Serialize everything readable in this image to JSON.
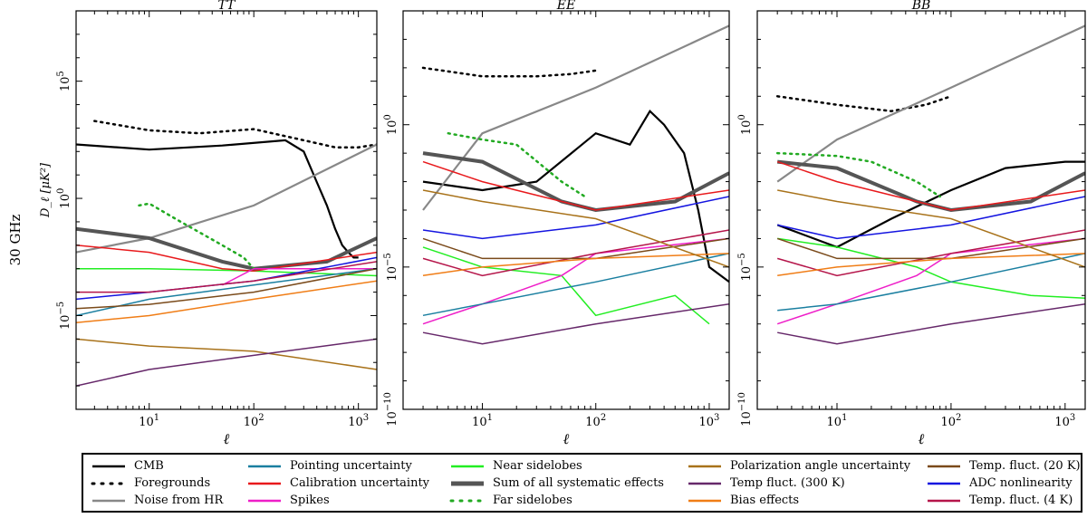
{
  "figure": {
    "row_label": "30 GHz"
  },
  "chart_data": [
    {
      "type": "line",
      "title": "TT",
      "xlabel": "ℓ",
      "ylabel": "D_ℓ [μK²]",
      "xscale": "log",
      "yscale": "log",
      "xlim": [
        2,
        1500
      ],
      "ylim": [
        1e-09,
        100000000.0
      ],
      "x_tick_labels": [
        "10^1",
        "10^2",
        "10^3"
      ],
      "y_tick_labels": [
        "10^−5",
        "10^0",
        "10^5"
      ],
      "series": [
        {
          "key": "cmb",
          "x": [
            2,
            10,
            50,
            200,
            300,
            400,
            500,
            600,
            700,
            800,
            900,
            1000
          ],
          "y": [
            200,
            120,
            180,
            300,
            100,
            5,
            0.5,
            0.05,
            0.01,
            0.005,
            0.003,
            0.003
          ]
        },
        {
          "key": "fg",
          "x": [
            3,
            10,
            30,
            100,
            300,
            600,
            1000,
            1500
          ],
          "y": [
            2000,
            800,
            600,
            900,
            300,
            150,
            150,
            200
          ]
        },
        {
          "key": "noise",
          "x": [
            2,
            10,
            100,
            1500
          ],
          "y": [
            0.005,
            0.02,
            0.5,
            200
          ]
        },
        {
          "key": "sum",
          "x": [
            2,
            10,
            50,
            100,
            500,
            1500
          ],
          "y": [
            0.05,
            0.02,
            0.002,
            0.001,
            0.002,
            0.02
          ]
        },
        {
          "key": "farsl",
          "x": [
            8,
            10,
            20,
            50,
            80,
            100
          ],
          "y": [
            0.5,
            0.6,
            0.1,
            0.01,
            0.003,
            0.001
          ]
        },
        {
          "key": "nearsl",
          "x": [
            2,
            10,
            100,
            1500
          ],
          "y": [
            0.001,
            0.001,
            0.0008,
            0.0005
          ]
        },
        {
          "key": "calib",
          "x": [
            2,
            10,
            50,
            100,
            1500
          ],
          "y": [
            0.01,
            0.005,
            0.001,
            0.0008,
            0.005
          ]
        },
        {
          "key": "spikes",
          "x": [
            50,
            100,
            1500
          ],
          "y": [
            0.0002,
            0.001,
            0.001
          ]
        },
        {
          "key": "pointing",
          "x": [
            2,
            10,
            100,
            1500
          ],
          "y": [
            1e-05,
            5e-05,
            0.0002,
            0.001
          ]
        },
        {
          "key": "adc",
          "x": [
            2,
            10,
            100,
            1500
          ],
          "y": [
            5e-05,
            0.0001,
            0.0003,
            0.003
          ]
        },
        {
          "key": "tfluct4",
          "x": [
            2,
            10,
            100,
            1500
          ],
          "y": [
            0.0001,
            0.0001,
            0.0003,
            0.002
          ]
        },
        {
          "key": "tfluct20",
          "x": [
            2,
            10,
            100,
            1500
          ],
          "y": [
            2e-05,
            3e-05,
            0.0001,
            0.001
          ]
        },
        {
          "key": "bias",
          "x": [
            2,
            10,
            100,
            1500
          ],
          "y": [
            5e-06,
            1e-05,
            5e-05,
            0.0003
          ]
        },
        {
          "key": "polang",
          "x": [
            2,
            10,
            100,
            1500
          ],
          "y": [
            1e-06,
            5e-07,
            3e-07,
            5e-08
          ]
        },
        {
          "key": "tfluct300",
          "x": [
            2,
            10,
            100,
            1500
          ],
          "y": [
            1e-08,
            5e-08,
            2e-07,
            1e-06
          ]
        }
      ]
    },
    {
      "type": "line",
      "title": "EE",
      "xlabel": "ℓ",
      "ylabel": "",
      "xscale": "log",
      "yscale": "log",
      "xlim": [
        2,
        1500
      ],
      "ylim": [
        1e-10,
        10000.0
      ],
      "x_tick_labels": [
        "10^1",
        "10^2",
        "10^3"
      ],
      "y_tick_labels": [
        "10^−10",
        "10^−5",
        "10^0"
      ],
      "series": [
        {
          "key": "cmb",
          "x": [
            3,
            10,
            30,
            100,
            200,
            300,
            400,
            600,
            800,
            1000,
            1500
          ],
          "y": [
            0.01,
            0.005,
            0.01,
            0.5,
            0.2,
            3,
            1,
            0.1,
            0.001,
            1e-05,
            3e-06
          ]
        },
        {
          "key": "fg",
          "x": [
            3,
            10,
            30,
            60,
            100
          ],
          "y": [
            100,
            50,
            50,
            60,
            80
          ]
        },
        {
          "key": "noise",
          "x": [
            3,
            10,
            100,
            1500
          ],
          "y": [
            0.001,
            0.5,
            20,
            3000
          ]
        },
        {
          "key": "sum",
          "x": [
            3,
            10,
            50,
            100,
            500,
            1500
          ],
          "y": [
            0.1,
            0.05,
            0.002,
            0.001,
            0.002,
            0.02
          ]
        },
        {
          "key": "farsl",
          "x": [
            5,
            10,
            20,
            50,
            80
          ],
          "y": [
            0.5,
            0.3,
            0.2,
            0.01,
            0.003
          ]
        },
        {
          "key": "nearsl",
          "x": [
            3,
            10,
            50,
            100,
            500,
            1000
          ],
          "y": [
            5e-05,
            1e-05,
            5e-06,
            2e-07,
            1e-06,
            1e-07
          ]
        },
        {
          "key": "calib",
          "x": [
            3,
            10,
            50,
            100,
            1500
          ],
          "y": [
            0.05,
            0.01,
            0.002,
            0.001,
            0.005
          ]
        },
        {
          "key": "spikes",
          "x": [
            3,
            10,
            50,
            100,
            1500
          ],
          "y": [
            1e-07,
            5e-07,
            5e-06,
            3e-05,
            0.0001
          ]
        },
        {
          "key": "pointing",
          "x": [
            3,
            10,
            100,
            1500
          ],
          "y": [
            2e-07,
            5e-07,
            3e-06,
            3e-05
          ]
        },
        {
          "key": "adc",
          "x": [
            3,
            10,
            100,
            1500
          ],
          "y": [
            0.0002,
            0.0001,
            0.0003,
            0.003
          ]
        },
        {
          "key": "tfluct4",
          "x": [
            3,
            10,
            100,
            1500
          ],
          "y": [
            2e-05,
            5e-06,
            3e-05,
            0.0002
          ]
        },
        {
          "key": "tfluct20",
          "x": [
            3,
            10,
            100,
            1500
          ],
          "y": [
            0.0001,
            2e-05,
            2e-05,
            0.0001
          ]
        },
        {
          "key": "bias",
          "x": [
            3,
            10,
            100,
            1500
          ],
          "y": [
            5e-06,
            1e-05,
            2e-05,
            3e-05
          ]
        },
        {
          "key": "polang",
          "x": [
            3,
            10,
            100,
            1500
          ],
          "y": [
            0.005,
            0.002,
            0.0005,
            1e-05
          ]
        },
        {
          "key": "tfluct300",
          "x": [
            3,
            10,
            100,
            1500
          ],
          "y": [
            5e-08,
            2e-08,
            1e-07,
            5e-07
          ]
        }
      ]
    },
    {
      "type": "line",
      "title": "BB",
      "xlabel": "ℓ",
      "ylabel": "",
      "xscale": "log",
      "yscale": "log",
      "xlim": [
        2,
        1500
      ],
      "ylim": [
        1e-10,
        10000.0
      ],
      "x_tick_labels": [
        "10^1",
        "10^2",
        "10^3"
      ],
      "y_tick_labels": [
        "10^−10",
        "10^−5",
        "10^0"
      ],
      "series": [
        {
          "key": "cmb",
          "x": [
            3,
            10,
            30,
            100,
            300,
            1000,
            1500
          ],
          "y": [
            0.0003,
            5e-05,
            0.0005,
            0.005,
            0.03,
            0.05,
            0.05
          ]
        },
        {
          "key": "fg",
          "x": [
            3,
            10,
            30,
            60,
            100
          ],
          "y": [
            10,
            5,
            3,
            5,
            10
          ]
        },
        {
          "key": "noise",
          "x": [
            3,
            10,
            100,
            1500
          ],
          "y": [
            0.01,
            0.3,
            20,
            3000
          ]
        },
        {
          "key": "sum",
          "x": [
            3,
            10,
            50,
            100,
            500,
            1500
          ],
          "y": [
            0.05,
            0.03,
            0.002,
            0.001,
            0.002,
            0.02
          ]
        },
        {
          "key": "farsl",
          "x": [
            3,
            10,
            20,
            50,
            80
          ],
          "y": [
            0.1,
            0.08,
            0.05,
            0.01,
            0.003
          ]
        },
        {
          "key": "nearsl",
          "x": [
            3,
            10,
            50,
            100,
            500,
            1500
          ],
          "y": [
            0.0001,
            5e-05,
            1e-05,
            3e-06,
            1e-06,
            8e-07
          ]
        },
        {
          "key": "calib",
          "x": [
            3,
            10,
            50,
            100,
            1500
          ],
          "y": [
            0.05,
            0.01,
            0.002,
            0.001,
            0.005
          ]
        },
        {
          "key": "spikes",
          "x": [
            3,
            10,
            50,
            100,
            1500
          ],
          "y": [
            1e-07,
            5e-07,
            5e-06,
            3e-05,
            0.0001
          ]
        },
        {
          "key": "pointing",
          "x": [
            3,
            10,
            100,
            1500
          ],
          "y": [
            3e-07,
            5e-07,
            3e-06,
            3e-05
          ]
        },
        {
          "key": "adc",
          "x": [
            3,
            10,
            100,
            1500
          ],
          "y": [
            0.0003,
            0.0001,
            0.0003,
            0.003
          ]
        },
        {
          "key": "tfluct4",
          "x": [
            3,
            10,
            100,
            1500
          ],
          "y": [
            2e-05,
            5e-06,
            3e-05,
            0.0002
          ]
        },
        {
          "key": "tfluct20",
          "x": [
            3,
            10,
            100,
            1500
          ],
          "y": [
            0.0001,
            2e-05,
            2e-05,
            0.0001
          ]
        },
        {
          "key": "bias",
          "x": [
            3,
            10,
            100,
            1500
          ],
          "y": [
            5e-06,
            1e-05,
            2e-05,
            3e-05
          ]
        },
        {
          "key": "polang",
          "x": [
            3,
            10,
            100,
            1500
          ],
          "y": [
            0.005,
            0.002,
            0.0005,
            1e-05
          ]
        },
        {
          "key": "tfluct300",
          "x": [
            3,
            10,
            100,
            1500
          ],
          "y": [
            5e-08,
            2e-08,
            1e-07,
            5e-07
          ]
        }
      ]
    }
  ],
  "legend": {
    "items": [
      {
        "key": "cmb",
        "label": "CMB",
        "color": "#000000",
        "style": "solid"
      },
      {
        "key": "fg",
        "label": "Foregrounds",
        "color": "#000000",
        "style": "dotted"
      },
      {
        "key": "noise",
        "label": "Noise from HR",
        "color": "#888888",
        "style": "solid"
      },
      {
        "key": "pointing",
        "label": "Pointing uncertainty",
        "color": "#1a7fa0",
        "style": "solid"
      },
      {
        "key": "calib",
        "label": "Calibration uncertainty",
        "color": "#e8191c",
        "style": "solid"
      },
      {
        "key": "spikes",
        "label": "Spikes",
        "color": "#ee1ec8",
        "style": "solid"
      },
      {
        "key": "nearsl",
        "label": "Near sidelobes",
        "color": "#22ee22",
        "style": "solid"
      },
      {
        "key": "sum",
        "label": "Sum of all systematic effects",
        "color": "#555555",
        "style": "thick"
      },
      {
        "key": "farsl",
        "label": "Far sidelobes",
        "color": "#22aa22",
        "style": "dotted"
      },
      {
        "key": "polang",
        "label": "Polarization angle uncertainty",
        "color": "#a8721a",
        "style": "solid"
      },
      {
        "key": "tfluct300",
        "label": "Temp fluct. (300 K)",
        "color": "#66286a",
        "style": "solid"
      },
      {
        "key": "bias",
        "label": "Bias effects",
        "color": "#f07d16",
        "style": "solid"
      },
      {
        "key": "tfluct20",
        "label": "Temp. fluct. (20 K)",
        "color": "#7a4a1a",
        "style": "solid"
      },
      {
        "key": "adc",
        "label": "ADC nonlinearity",
        "color": "#1414e0",
        "style": "solid"
      },
      {
        "key": "tfluct4",
        "label": "Temp. fluct. (4 K)",
        "color": "#b5154a",
        "style": "solid"
      }
    ]
  }
}
